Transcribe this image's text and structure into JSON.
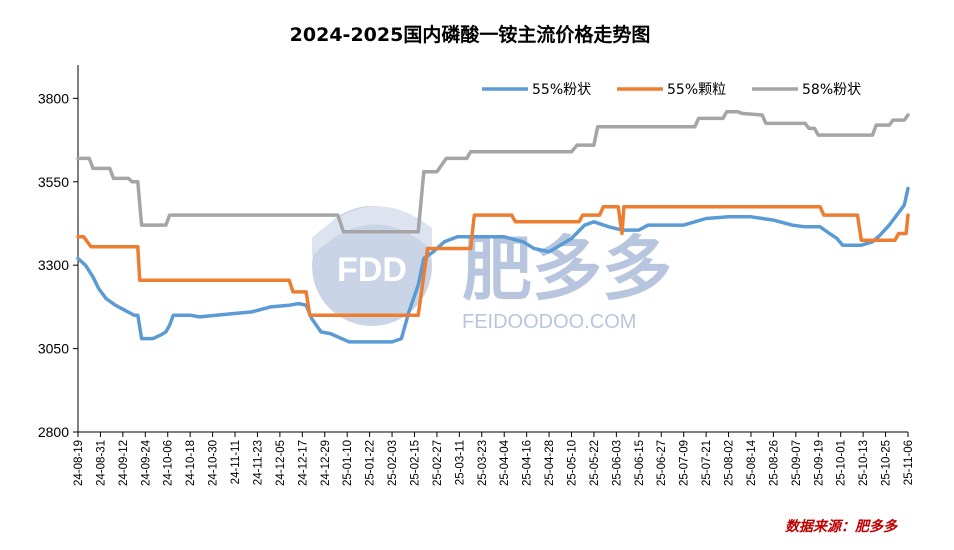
{
  "chart_data": {
    "type": "line",
    "title": "2024-2025国内磷酸一铵主流价格走势图",
    "source": "数据来源：肥多多",
    "watermark": {
      "name": "肥多多",
      "logo": "FDD",
      "url": "FEIDOODOO.COM"
    },
    "ylim": [
      2800,
      3900
    ],
    "yticks": [
      2800,
      3050,
      3300,
      3550,
      3800
    ],
    "legend_position": "top-right",
    "x_labels": [
      "24-08-19",
      "24-08-31",
      "24-09-12",
      "24-09-24",
      "24-10-06",
      "24-10-18",
      "24-10-30",
      "24-11-11",
      "24-11-23",
      "24-12-05",
      "24-12-17",
      "24-12-29",
      "25-01-10",
      "25-01-22",
      "25-02-03",
      "25-02-15",
      "25-02-27",
      "25-03-11",
      "25-03-23",
      "25-04-04",
      "25-04-16",
      "25-04-28",
      "25-05-10",
      "25-05-22",
      "25-06-03",
      "25-06-15",
      "25-06-27",
      "25-07-09",
      "25-07-21",
      "25-08-02",
      "25-08-14",
      "25-08-26",
      "25-09-07",
      "25-09-19",
      "25-10-01",
      "25-10-13",
      "25-10-25",
      "25-11-06"
    ],
    "x_start": "2024-08-19",
    "x_end": "2025-11-06",
    "series": [
      {
        "name": "55%粉状",
        "color": "#5b9bd5",
        "points": [
          [
            "2024-08-19",
            3320
          ],
          [
            "2024-08-23",
            3300
          ],
          [
            "2024-08-27",
            3265
          ],
          [
            "2024-08-30",
            3230
          ],
          [
            "2024-09-03",
            3200
          ],
          [
            "2024-09-08",
            3180
          ],
          [
            "2024-09-13",
            3165
          ],
          [
            "2024-09-18",
            3150
          ],
          [
            "2024-09-20",
            3150
          ],
          [
            "2024-09-22",
            3080
          ],
          [
            "2024-09-28",
            3080
          ],
          [
            "2024-10-02",
            3090
          ],
          [
            "2024-10-05",
            3100
          ],
          [
            "2024-10-07",
            3120
          ],
          [
            "2024-10-09",
            3150
          ],
          [
            "2024-10-18",
            3150
          ],
          [
            "2024-10-23",
            3145
          ],
          [
            "2024-11-01",
            3150
          ],
          [
            "2024-11-10",
            3155
          ],
          [
            "2024-11-20",
            3160
          ],
          [
            "2024-11-30",
            3175
          ],
          [
            "2024-12-10",
            3180
          ],
          [
            "2024-12-15",
            3185
          ],
          [
            "2024-12-19",
            3180
          ],
          [
            "2024-12-22",
            3140
          ],
          [
            "2024-12-27",
            3100
          ],
          [
            "2025-01-01",
            3095
          ],
          [
            "2025-01-05",
            3085
          ],
          [
            "2025-01-11",
            3070
          ],
          [
            "2025-02-03",
            3070
          ],
          [
            "2025-02-08",
            3080
          ],
          [
            "2025-02-12",
            3160
          ],
          [
            "2025-02-17",
            3240
          ],
          [
            "2025-02-20",
            3320
          ],
          [
            "2025-02-25",
            3340
          ],
          [
            "2025-03-03",
            3370
          ],
          [
            "2025-03-10",
            3385
          ],
          [
            "2025-03-23",
            3385
          ],
          [
            "2025-04-04",
            3385
          ],
          [
            "2025-04-14",
            3370
          ],
          [
            "2025-04-20",
            3350
          ],
          [
            "2025-04-28",
            3340
          ],
          [
            "2025-05-04",
            3360
          ],
          [
            "2025-05-10",
            3380
          ],
          [
            "2025-05-17",
            3420
          ],
          [
            "2025-05-22",
            3430
          ],
          [
            "2025-05-30",
            3415
          ],
          [
            "2025-06-06",
            3405
          ],
          [
            "2025-06-15",
            3405
          ],
          [
            "2025-06-20",
            3420
          ],
          [
            "2025-07-09",
            3420
          ],
          [
            "2025-07-21",
            3440
          ],
          [
            "2025-08-02",
            3445
          ],
          [
            "2025-08-14",
            3445
          ],
          [
            "2025-08-26",
            3435
          ],
          [
            "2025-09-05",
            3420
          ],
          [
            "2025-09-12",
            3415
          ],
          [
            "2025-09-20",
            3415
          ],
          [
            "2025-09-25",
            3395
          ],
          [
            "2025-09-29",
            3380
          ],
          [
            "2025-10-02",
            3360
          ],
          [
            "2025-10-12",
            3360
          ],
          [
            "2025-10-18",
            3370
          ],
          [
            "2025-10-22",
            3390
          ],
          [
            "2025-10-27",
            3420
          ],
          [
            "2025-10-31",
            3450
          ],
          [
            "2025-11-04",
            3480
          ],
          [
            "2025-11-06",
            3530
          ]
        ]
      },
      {
        "name": "55%颗粒",
        "color": "#ed7d31",
        "points": [
          [
            "2024-08-19",
            3385
          ],
          [
            "2024-08-22",
            3385
          ],
          [
            "2024-08-26",
            3355
          ],
          [
            "2024-09-20",
            3355
          ],
          [
            "2024-09-21",
            3255
          ],
          [
            "2024-12-10",
            3255
          ],
          [
            "2024-12-12",
            3220
          ],
          [
            "2024-12-19",
            3220
          ],
          [
            "2024-12-21",
            3150
          ],
          [
            "2025-02-17",
            3150
          ],
          [
            "2025-02-22",
            3350
          ],
          [
            "2025-03-17",
            3350
          ],
          [
            "2025-03-19",
            3450
          ],
          [
            "2025-04-08",
            3450
          ],
          [
            "2025-04-10",
            3430
          ],
          [
            "2025-05-14",
            3430
          ],
          [
            "2025-05-16",
            3450
          ],
          [
            "2025-05-25",
            3450
          ],
          [
            "2025-05-27",
            3475
          ],
          [
            "2025-06-04",
            3475
          ],
          [
            "2025-06-06",
            3395
          ],
          [
            "2025-06-07",
            3475
          ],
          [
            "2025-09-20",
            3475
          ],
          [
            "2025-09-22",
            3450
          ],
          [
            "2025-10-10",
            3450
          ],
          [
            "2025-10-12",
            3375
          ],
          [
            "2025-10-30",
            3375
          ],
          [
            "2025-11-01",
            3395
          ],
          [
            "2025-11-05",
            3395
          ],
          [
            "2025-11-06",
            3450
          ]
        ]
      },
      {
        "name": "58%粉状",
        "color": "#a5a5a5",
        "points": [
          [
            "2024-08-19",
            3620
          ],
          [
            "2024-08-25",
            3620
          ],
          [
            "2024-08-27",
            3590
          ],
          [
            "2024-09-05",
            3590
          ],
          [
            "2024-09-07",
            3560
          ],
          [
            "2024-09-15",
            3560
          ],
          [
            "2024-09-17",
            3550
          ],
          [
            "2024-09-20",
            3550
          ],
          [
            "2024-09-22",
            3420
          ],
          [
            "2024-10-05",
            3420
          ],
          [
            "2024-10-07",
            3450
          ],
          [
            "2025-01-05",
            3450
          ],
          [
            "2025-01-08",
            3400
          ],
          [
            "2025-02-17",
            3400
          ],
          [
            "2025-02-20",
            3580
          ],
          [
            "2025-02-27",
            3580
          ],
          [
            "2025-03-04",
            3620
          ],
          [
            "2025-03-15",
            3620
          ],
          [
            "2025-03-17",
            3640
          ],
          [
            "2025-05-10",
            3640
          ],
          [
            "2025-05-13",
            3660
          ],
          [
            "2025-05-22",
            3660
          ],
          [
            "2025-05-24",
            3715
          ],
          [
            "2025-07-15",
            3715
          ],
          [
            "2025-07-17",
            3740
          ],
          [
            "2025-07-30",
            3740
          ],
          [
            "2025-08-01",
            3760
          ],
          [
            "2025-08-07",
            3760
          ],
          [
            "2025-08-09",
            3755
          ],
          [
            "2025-08-20",
            3750
          ],
          [
            "2025-08-22",
            3725
          ],
          [
            "2025-09-12",
            3725
          ],
          [
            "2025-09-14",
            3710
          ],
          [
            "2025-09-17",
            3710
          ],
          [
            "2025-09-19",
            3690
          ],
          [
            "2025-10-18",
            3690
          ],
          [
            "2025-10-20",
            3720
          ],
          [
            "2025-10-27",
            3720
          ],
          [
            "2025-10-29",
            3735
          ],
          [
            "2025-11-04",
            3735
          ],
          [
            "2025-11-06",
            3750
          ]
        ]
      }
    ]
  }
}
